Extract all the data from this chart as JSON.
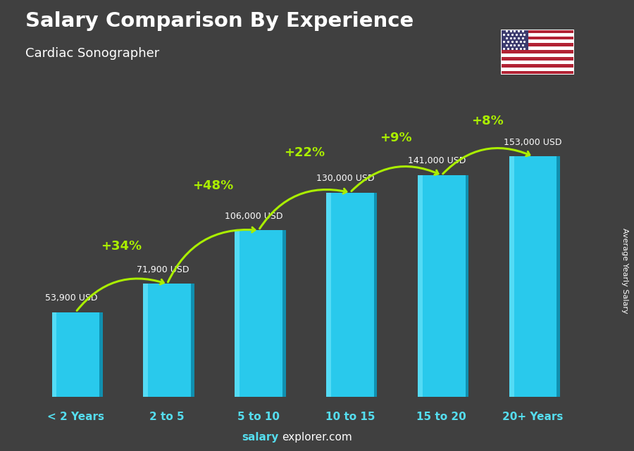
{
  "title": "Salary Comparison By Experience",
  "subtitle": "Cardiac Sonographer",
  "categories": [
    "< 2 Years",
    "2 to 5",
    "5 to 10",
    "10 to 15",
    "15 to 20",
    "20+ Years"
  ],
  "values": [
    53900,
    71900,
    106000,
    130000,
    141000,
    153000
  ],
  "labels": [
    "53,900 USD",
    "71,900 USD",
    "106,000 USD",
    "130,000 USD",
    "141,000 USD",
    "153,000 USD"
  ],
  "pct_changes": [
    "+34%",
    "+48%",
    "+22%",
    "+9%",
    "+8%"
  ],
  "front_color": "#29c9ec",
  "side_color": "#1090b0",
  "top_color": "#70e4f8",
  "highlight_color": "#60dff5",
  "bg_color": "#404040",
  "title_color": "#ffffff",
  "subtitle_color": "#ffffff",
  "label_color": "#ffffff",
  "cat_color": "#55ddee",
  "pct_color": "#aaee00",
  "arrow_color": "#aaee00",
  "ylabel": "Average Yearly Salary",
  "footer_bold": "salary",
  "footer_normal": "explorer.com"
}
